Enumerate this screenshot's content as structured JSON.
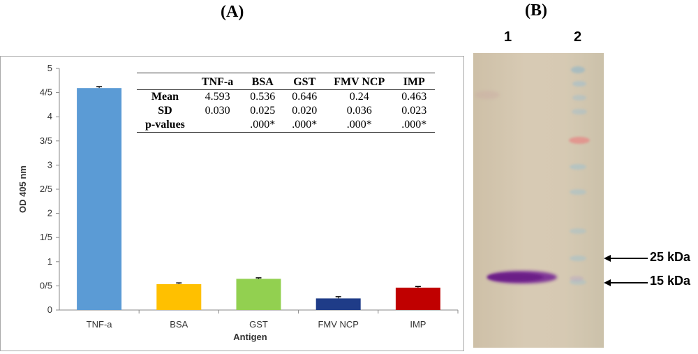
{
  "panel_a_label": "(A)",
  "panel_b_label": "(B)",
  "chart_data": {
    "type": "bar",
    "categories": [
      "TNF-a",
      "BSA",
      "GST",
      "FMV NCP",
      "IMP"
    ],
    "values": [
      4.593,
      0.536,
      0.646,
      0.24,
      0.463
    ],
    "errors": [
      0.03,
      0.025,
      0.02,
      0.036,
      0.023
    ],
    "colors": [
      "#5b9bd5",
      "#ffc000",
      "#92d050",
      "#1f3c88",
      "#c00000"
    ],
    "ylabel": "OD 405 nm",
    "xlabel": "Antigen",
    "ylim": [
      0,
      5
    ],
    "yticks": [
      0,
      0.5,
      1,
      1.5,
      2,
      2.5,
      3,
      3.5,
      4,
      4.5,
      5
    ],
    "ytick_labels": [
      "0",
      "0/5",
      "1",
      "1/5",
      "2",
      "2/5",
      "3",
      "3/5",
      "4",
      "4/5",
      "5"
    ],
    "grid": false
  },
  "stats_table": {
    "headers": [
      "",
      "TNF-a",
      "BSA",
      "GST",
      "FMV NCP",
      "IMP"
    ],
    "rows": [
      {
        "label": "Mean",
        "values": [
          "4.593",
          "0.536",
          "0.646",
          "0.24",
          "0.463"
        ]
      },
      {
        "label": "SD",
        "values": [
          "0.030",
          "0.025",
          "0.020",
          "0.036",
          "0.023"
        ]
      },
      {
        "label": "p-values",
        "values": [
          "",
          ".000*",
          ".000*",
          ".000*",
          ".000*"
        ]
      }
    ]
  },
  "blot": {
    "lane_labels": [
      "1",
      "2"
    ],
    "markers": [
      "25 kDa",
      "15 kDa"
    ]
  }
}
